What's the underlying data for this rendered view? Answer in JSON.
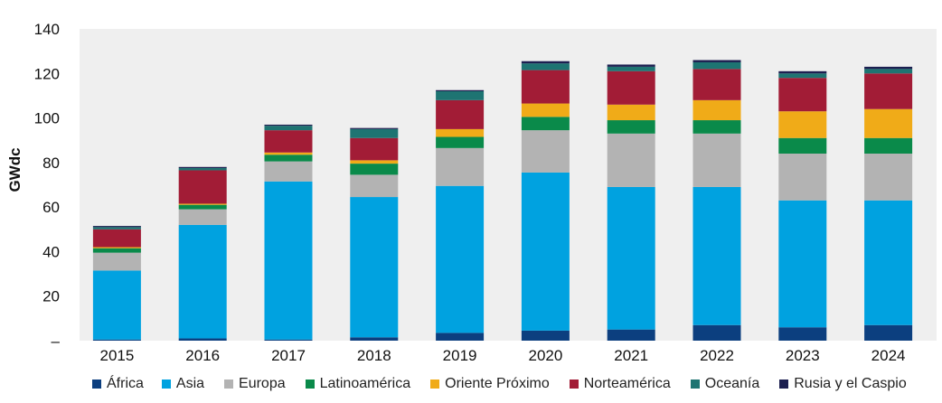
{
  "chart_data": {
    "type": "bar",
    "stacked": true,
    "ylabel": "GWdc",
    "ylim": [
      0,
      140
    ],
    "yticks": [
      "140",
      "120",
      "100",
      "80",
      "60",
      "40",
      "20",
      "–"
    ],
    "categories": [
      "2015",
      "2016",
      "2017",
      "2018",
      "2019",
      "2020",
      "2021",
      "2022",
      "2023",
      "2024"
    ],
    "series": [
      {
        "name": "África",
        "color": "#0c3f7f",
        "values": [
          0.5,
          1,
          0.5,
          1.5,
          3.5,
          4.5,
          5,
          7,
          6,
          7
        ]
      },
      {
        "name": "Asia",
        "color": "#00a2e0",
        "values": [
          31,
          51,
          71,
          63,
          66,
          71,
          64,
          62,
          57,
          56
        ]
      },
      {
        "name": "Europa",
        "color": "#b3b3b3",
        "values": [
          8,
          7,
          9,
          10,
          17,
          19,
          24,
          24,
          21,
          21
        ]
      },
      {
        "name": "Latinoamérica",
        "color": "#0a8a4a",
        "values": [
          2,
          2,
          3,
          5,
          5,
          6,
          6,
          6,
          7,
          7
        ]
      },
      {
        "name": "Oriente Próximo",
        "color": "#f0ab18",
        "values": [
          0.5,
          0.5,
          1,
          1.5,
          3.5,
          6,
          7,
          9,
          12,
          13
        ]
      },
      {
        "name": "Norteamérica",
        "color": "#a21c36",
        "values": [
          8,
          15,
          10,
          10,
          13,
          15,
          15,
          14,
          15,
          16
        ]
      },
      {
        "name": "Oceanía",
        "color": "#1e7472",
        "values": [
          1,
          1,
          2,
          4,
          4,
          3,
          2,
          3,
          2,
          2
        ]
      },
      {
        "name": "Rusia y el Caspio",
        "color": "#1c1f50",
        "values": [
          0.5,
          0.5,
          0.5,
          0.5,
          0.5,
          1,
          1,
          1,
          1,
          1
        ]
      }
    ],
    "grid": false,
    "legend_position": "bottom"
  }
}
